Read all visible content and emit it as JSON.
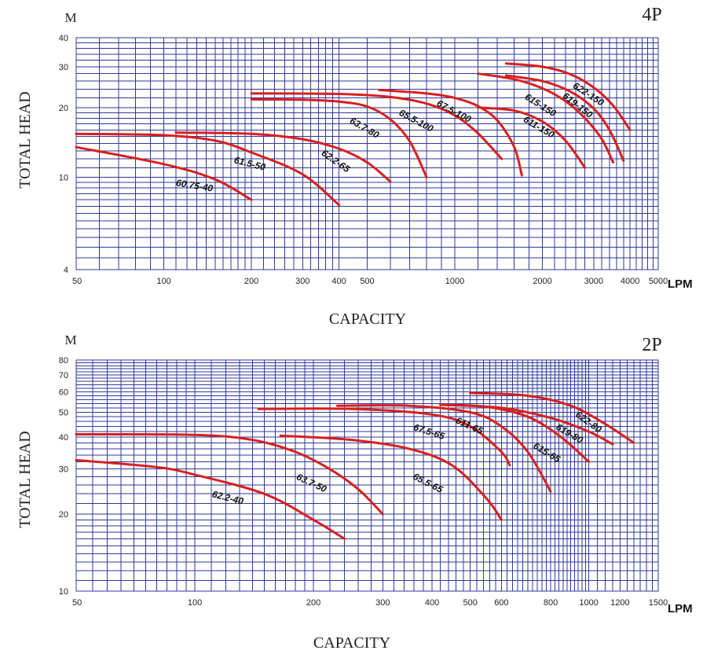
{
  "chart_data": [
    {
      "type": "line",
      "pole_label": "4P",
      "title": "",
      "xlabel": "CAPACITY",
      "ylabel": "TOTAL HEAD",
      "y_unit": "M",
      "x_unit": "LPM",
      "x_scale": "log",
      "y_scale": "log",
      "xlim": [
        50,
        5000
      ],
      "ylim": [
        4,
        40
      ],
      "x_ticks": [
        50,
        100,
        200,
        300,
        400,
        500,
        1000,
        2000,
        3000,
        4000,
        5000
      ],
      "y_ticks": [
        4,
        10,
        20,
        30,
        40
      ],
      "grid": true,
      "series": [
        {
          "name": "60.75-40",
          "x": [
            50,
            100,
            150,
            200
          ],
          "y": [
            13.5,
            11.4,
            9.8,
            8.0
          ]
        },
        {
          "name": "61.5-50",
          "x": [
            50,
            100,
            150,
            200,
            300,
            400
          ],
          "y": [
            15.4,
            15.2,
            14.4,
            12.8,
            10.3,
            7.6
          ]
        },
        {
          "name": "62.2-65",
          "x": [
            110,
            200,
            300,
            400,
            500,
            600
          ],
          "y": [
            15.6,
            15.4,
            14.6,
            13.3,
            11.6,
            9.6
          ]
        },
        {
          "name": "63.7-80",
          "x": [
            200,
            300,
            400,
            500,
            600,
            700,
            800
          ],
          "y": [
            21.7,
            21.6,
            21.2,
            20.2,
            17.8,
            14.3,
            10.0
          ]
        },
        {
          "name": "65.5-100",
          "x": [
            200,
            400,
            600,
            800,
            1000,
            1200,
            1450
          ],
          "y": [
            23.0,
            22.9,
            22.2,
            20.8,
            18.5,
            15.5,
            12.0
          ]
        },
        {
          "name": "67.5-100",
          "x": [
            550,
            800,
            1000,
            1200,
            1400,
            1600,
            1700
          ],
          "y": [
            23.8,
            23.0,
            22.0,
            20.3,
            17.6,
            13.5,
            10.2
          ]
        },
        {
          "name": "611-150",
          "x": [
            1200,
            1600,
            2000,
            2400,
            2800
          ],
          "y": [
            20.0,
            19.4,
            17.4,
            14.4,
            11.0
          ]
        },
        {
          "name": "615-150",
          "x": [
            1200,
            1600,
            2000,
            2400,
            2800,
            3200,
            3500
          ],
          "y": [
            28.0,
            26.5,
            24.2,
            21.3,
            18.0,
            14.6,
            11.6
          ]
        },
        {
          "name": "619-150",
          "x": [
            1500,
            2000,
            2500,
            3000,
            3400,
            3800
          ],
          "y": [
            27.5,
            26.0,
            23.4,
            19.8,
            16.0,
            11.8
          ]
        },
        {
          "name": "622-150",
          "x": [
            1500,
            2000,
            2500,
            3000,
            3500,
            4000
          ],
          "y": [
            31.0,
            30.0,
            27.8,
            24.4,
            20.4,
            16.0
          ]
        }
      ]
    },
    {
      "type": "line",
      "pole_label": "2P",
      "title": "",
      "xlabel": "CAPACITY",
      "ylabel": "TOTAL HEAD",
      "y_unit": "M",
      "x_unit": "LPM",
      "x_scale": "log",
      "y_scale": "log",
      "xlim": [
        50,
        1500
      ],
      "ylim": [
        10,
        80
      ],
      "x_ticks": [
        50,
        100,
        200,
        300,
        400,
        500,
        600,
        800,
        1000,
        1200,
        1500
      ],
      "y_ticks": [
        10,
        20,
        30,
        40,
        50,
        60,
        70,
        80
      ],
      "grid": true,
      "series": [
        {
          "name": "62.2-40",
          "x": [
            50,
            80,
            100,
            150,
            200,
            240
          ],
          "y": [
            32.5,
            30.5,
            28.5,
            24.0,
            19.0,
            16.0
          ]
        },
        {
          "name": "63.7-50",
          "x": [
            50,
            100,
            140,
            180,
            220,
            260,
            300
          ],
          "y": [
            41.0,
            40.8,
            39.0,
            35.0,
            30.0,
            25.0,
            20.0
          ]
        },
        {
          "name": "65.5-65",
          "x": [
            165,
            250,
            350,
            450,
            550,
            600
          ],
          "y": [
            40.5,
            39.0,
            36.0,
            31.0,
            23.0,
            19.0
          ]
        },
        {
          "name": "67.5-65",
          "x": [
            145,
            250,
            400,
            500,
            600,
            630
          ],
          "y": [
            51.5,
            51.5,
            49.0,
            44.0,
            35.0,
            31.0
          ]
        },
        {
          "name": "611-65",
          "x": [
            230,
            350,
            500,
            600,
            700,
            800
          ],
          "y": [
            53.0,
            53.0,
            50.0,
            44.0,
            35.0,
            24.5
          ]
        },
        {
          "name": "615-65",
          "x": [
            420,
            550,
            700,
            850,
            1000
          ],
          "y": [
            53.5,
            52.5,
            48.0,
            40.0,
            32.0
          ]
        },
        {
          "name": "619-80",
          "x": [
            420,
            600,
            800,
            1000,
            1150
          ],
          "y": [
            53.5,
            52.0,
            47.5,
            42.0,
            37.5
          ]
        },
        {
          "name": "622-80",
          "x": [
            500,
            700,
            900,
            1100,
            1300
          ],
          "y": [
            59.5,
            58.0,
            53.0,
            45.0,
            38.0
          ]
        }
      ]
    }
  ]
}
